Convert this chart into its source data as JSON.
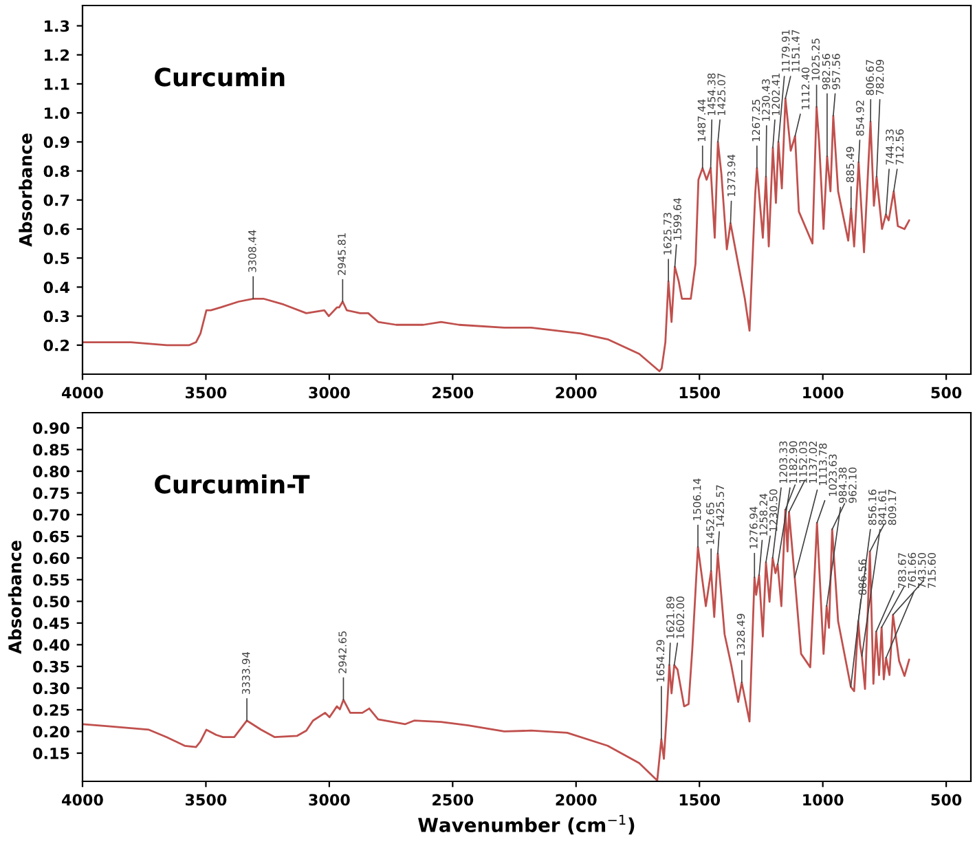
{
  "chart_data": [
    {
      "type": "line",
      "title": "Curcumin",
      "ylabel": "Absorbance",
      "xlim": [
        4000,
        400
      ],
      "ylim": [
        0.1,
        1.37
      ],
      "xticks": [
        4000,
        3500,
        3000,
        2500,
        2000,
        1500,
        1000,
        500
      ],
      "yticks": [
        0.2,
        0.3,
        0.4,
        0.5,
        0.6,
        0.7,
        0.8,
        0.9,
        {
          "value": 1.0,
          "label": "1.0"
        },
        1.1,
        1.2,
        1.3
      ],
      "x": [
        4000,
        3804,
        3658,
        3567,
        3540,
        3522,
        3498,
        3480,
        3440,
        3367,
        3308.4,
        3267,
        3185,
        3093,
        3020,
        3002,
        2969,
        2960,
        2945.8,
        2929,
        2875,
        2842,
        2802,
        2729,
        2619,
        2547,
        2474,
        2291,
        2182,
        1981,
        1872,
        1744,
        1662,
        1653,
        1638,
        1625.7,
        1613,
        1599.6,
        1584,
        1571,
        1535,
        1516,
        1504,
        1487.4,
        1471,
        1454.4,
        1438,
        1425.1,
        1411,
        1389,
        1374,
        1343,
        1316,
        1297,
        1274,
        1267,
        1243,
        1230.4,
        1219,
        1202.4,
        1190,
        1179.9,
        1166,
        1151.5,
        1130,
        1112.4,
        1097,
        1042,
        1025.3,
        1015,
        997,
        982.6,
        969,
        957.6,
        938,
        897,
        885.5,
        873,
        854.9,
        833,
        806.7,
        793,
        782.1,
        760,
        744.3,
        733,
        712.6,
        696,
        669,
        650
      ],
      "series": [
        {
          "color": "#c0504d",
          "values": [
            0.21,
            0.21,
            0.2,
            0.2,
            0.21,
            0.24,
            0.32,
            0.32,
            0.33,
            0.35,
            0.36,
            0.36,
            0.34,
            0.31,
            0.32,
            0.3,
            0.33,
            0.33,
            0.35,
            0.32,
            0.31,
            0.31,
            0.28,
            0.27,
            0.27,
            0.28,
            0.27,
            0.26,
            0.26,
            0.24,
            0.22,
            0.17,
            0.11,
            0.12,
            0.21,
            0.42,
            0.28,
            0.47,
            0.42,
            0.36,
            0.36,
            0.48,
            0.77,
            0.81,
            0.77,
            0.81,
            0.57,
            0.9,
            0.79,
            0.53,
            0.62,
            0.48,
            0.36,
            0.25,
            0.72,
            0.81,
            0.57,
            0.78,
            0.54,
            0.88,
            0.69,
            0.9,
            0.74,
            1.05,
            0.87,
            0.92,
            0.66,
            0.55,
            1.02,
            0.9,
            0.6,
            0.85,
            0.73,
            0.99,
            0.73,
            0.56,
            0.67,
            0.54,
            0.83,
            0.52,
            0.97,
            0.68,
            0.78,
            0.6,
            0.65,
            0.63,
            0.73,
            0.61,
            0.6,
            0.63
          ]
        }
      ],
      "annotations": [
        {
          "text": "3308.44",
          "x": 3308.4,
          "y": 0.36
        },
        {
          "text": "2945.81",
          "x": 2945.8,
          "y": 0.35
        },
        {
          "text": "1625.73",
          "x": 1625.7,
          "y": 0.42
        },
        {
          "text": "1599.64",
          "x": 1599.6,
          "y": 0.47
        },
        {
          "text": "1487.44",
          "x": 1487.4,
          "y": 0.81
        },
        {
          "text": "1454.38",
          "x": 1454.4,
          "y": 0.81
        },
        {
          "text": "1425.07",
          "x": 1425.1,
          "y": 0.9
        },
        {
          "text": "1373.94",
          "x": 1374,
          "y": 0.62
        },
        {
          "text": "1267.25",
          "x": 1267,
          "y": 0.81
        },
        {
          "text": "1230.43",
          "x": 1230.4,
          "y": 0.78
        },
        {
          "text": "1202.41",
          "x": 1202.4,
          "y": 0.88
        },
        {
          "text": "1179.91",
          "x": 1179.9,
          "y": 0.9
        },
        {
          "text": "1151.47",
          "x": 1151.5,
          "y": 1.05
        },
        {
          "text": "1112.40",
          "x": 1112.4,
          "y": 0.92
        },
        {
          "text": "1025.25",
          "x": 1025.3,
          "y": 1.02
        },
        {
          "text": "982.56",
          "x": 982.6,
          "y": 0.85
        },
        {
          "text": "957.56",
          "x": 957.6,
          "y": 0.99
        },
        {
          "text": "885.49",
          "x": 885.5,
          "y": 0.67
        },
        {
          "text": "854.92",
          "x": 854.9,
          "y": 0.83
        },
        {
          "text": "806.67",
          "x": 806.7,
          "y": 0.97
        },
        {
          "text": "782.09",
          "x": 782.1,
          "y": 0.78
        },
        {
          "text": "744.33",
          "x": 744.3,
          "y": 0.65
        },
        {
          "text": "712.56",
          "x": 712.6,
          "y": 0.73
        }
      ]
    },
    {
      "type": "line",
      "title": "Curcumin-T",
      "ylabel": "Absorbance",
      "xlabel": "Wavenumber (cm$^{−1}$)",
      "xlim": [
        4000,
        400
      ],
      "ylim": [
        0.085,
        0.935
      ],
      "xticks": [
        4000,
        3500,
        3000,
        2500,
        2000,
        1500,
        1000,
        500
      ],
      "yticks": [
        {
          "value": 0.15,
          "label": "0.15"
        },
        {
          "value": 0.2,
          "label": "0.20"
        },
        {
          "value": 0.25,
          "label": "0.25"
        },
        {
          "value": 0.3,
          "label": "0.30"
        },
        {
          "value": 0.35,
          "label": "0.35"
        },
        {
          "value": 0.4,
          "label": "0.40"
        },
        {
          "value": 0.45,
          "label": "0.45"
        },
        {
          "value": 0.5,
          "label": "0.50"
        },
        {
          "value": 0.55,
          "label": "0.55"
        },
        {
          "value": 0.6,
          "label": "0.60"
        },
        {
          "value": 0.65,
          "label": "0.65"
        },
        {
          "value": 0.7,
          "label": "0.70"
        },
        {
          "value": 0.75,
          "label": "0.75"
        },
        {
          "value": 0.8,
          "label": "0.80"
        },
        {
          "value": 0.85,
          "label": "0.85"
        },
        {
          "value": 0.9,
          "label": "0.90"
        }
      ],
      "x": [
        4000,
        3896,
        3731,
        3659,
        3586,
        3540,
        3522,
        3498,
        3458,
        3431,
        3385,
        3333.9,
        3276,
        3221,
        3130,
        3093,
        3066,
        3017,
        2999,
        2969,
        2957,
        2942.7,
        2915,
        2866,
        2838,
        2802,
        2692,
        2656,
        2547,
        2437,
        2291,
        2182,
        2036,
        1872,
        1744,
        1671,
        1654.3,
        1644,
        1631,
        1621.9,
        1613,
        1602,
        1589,
        1562,
        1544,
        1529,
        1506.1,
        1474,
        1452.7,
        1440,
        1425.6,
        1398,
        1371,
        1343,
        1328.5,
        1297,
        1276.9,
        1270,
        1258.2,
        1243,
        1230.5,
        1216,
        1203.3,
        1192,
        1182.9,
        1168,
        1152,
        1143,
        1137,
        1113.8,
        1088,
        1051,
        1023.6,
        997,
        984.4,
        975,
        962.1,
        938,
        886.6,
        873,
        856.2,
        849,
        841.6,
        829,
        809.2,
        795,
        783.7,
        772,
        761.7,
        753,
        743.5,
        730,
        715.6,
        691,
        669,
        650
      ],
      "series": [
        {
          "color": "#c0504d",
          "values": [
            0.217,
            0.212,
            0.204,
            0.187,
            0.167,
            0.164,
            0.177,
            0.204,
            0.192,
            0.187,
            0.187,
            0.225,
            0.204,
            0.187,
            0.19,
            0.202,
            0.225,
            0.243,
            0.233,
            0.258,
            0.251,
            0.273,
            0.243,
            0.243,
            0.253,
            0.228,
            0.217,
            0.225,
            0.222,
            0.214,
            0.2,
            0.202,
            0.197,
            0.167,
            0.127,
            0.087,
            0.182,
            0.137,
            0.253,
            0.353,
            0.288,
            0.353,
            0.343,
            0.258,
            0.263,
            0.389,
            0.625,
            0.489,
            0.57,
            0.464,
            0.61,
            0.424,
            0.353,
            0.268,
            0.313,
            0.223,
            0.555,
            0.515,
            0.56,
            0.419,
            0.59,
            0.499,
            0.6,
            0.565,
            0.585,
            0.489,
            0.711,
            0.615,
            0.706,
            0.555,
            0.379,
            0.348,
            0.681,
            0.379,
            0.489,
            0.439,
            0.666,
            0.454,
            0.303,
            0.293,
            0.454,
            0.4,
            0.374,
            0.298,
            0.615,
            0.31,
            0.43,
            0.33,
            0.44,
            0.32,
            0.37,
            0.33,
            0.469,
            0.363,
            0.328,
            0.366
          ]
        }
      ],
      "annotations": [
        {
          "text": "3333.94",
          "x": 3333.9,
          "y": 0.225
        },
        {
          "text": "2942.65",
          "x": 2942.7,
          "y": 0.273
        },
        {
          "text": "1654.29",
          "x": 1654.3,
          "y": 0.182
        },
        {
          "text": "1621.89",
          "x": 1621.9,
          "y": 0.353
        },
        {
          "text": "1602.00",
          "x": 1602,
          "y": 0.353
        },
        {
          "text": "1506.14",
          "x": 1506.1,
          "y": 0.625
        },
        {
          "text": "1452.65",
          "x": 1452.7,
          "y": 0.57
        },
        {
          "text": "1425.57",
          "x": 1425.6,
          "y": 0.61
        },
        {
          "text": "1328.49",
          "x": 1328.5,
          "y": 0.313
        },
        {
          "text": "1276.94",
          "x": 1276.9,
          "y": 0.555
        },
        {
          "text": "1258.24",
          "x": 1258.2,
          "y": 0.56
        },
        {
          "text": "1230.50",
          "x": 1230.5,
          "y": 0.59
        },
        {
          "text": "1203.33",
          "x": 1203.3,
          "y": 0.6
        },
        {
          "text": "1182.90",
          "x": 1182.9,
          "y": 0.585
        },
        {
          "text": "1152.03",
          "x": 1152,
          "y": 0.711
        },
        {
          "text": "1137.02",
          "x": 1137,
          "y": 0.706
        },
        {
          "text": "1113.78",
          "x": 1113.8,
          "y": 0.555
        },
        {
          "text": "1023.63",
          "x": 1023.6,
          "y": 0.681
        },
        {
          "text": "984.38",
          "x": 984.4,
          "y": 0.489
        },
        {
          "text": "962.10",
          "x": 962.1,
          "y": 0.666
        },
        {
          "text": "886.56",
          "x": 886.6,
          "y": 0.303
        },
        {
          "text": "856.16",
          "x": 856.2,
          "y": 0.454
        },
        {
          "text": "841.61",
          "x": 841.6,
          "y": 0.374
        },
        {
          "text": "809.17",
          "x": 809.2,
          "y": 0.615
        },
        {
          "text": "783.67",
          "x": 783.7,
          "y": 0.43
        },
        {
          "text": "761.66",
          "x": 761.7,
          "y": 0.44
        },
        {
          "text": "743.50",
          "x": 743.5,
          "y": 0.37
        },
        {
          "text": "715.60",
          "x": 715.6,
          "y": 0.469
        }
      ]
    }
  ]
}
